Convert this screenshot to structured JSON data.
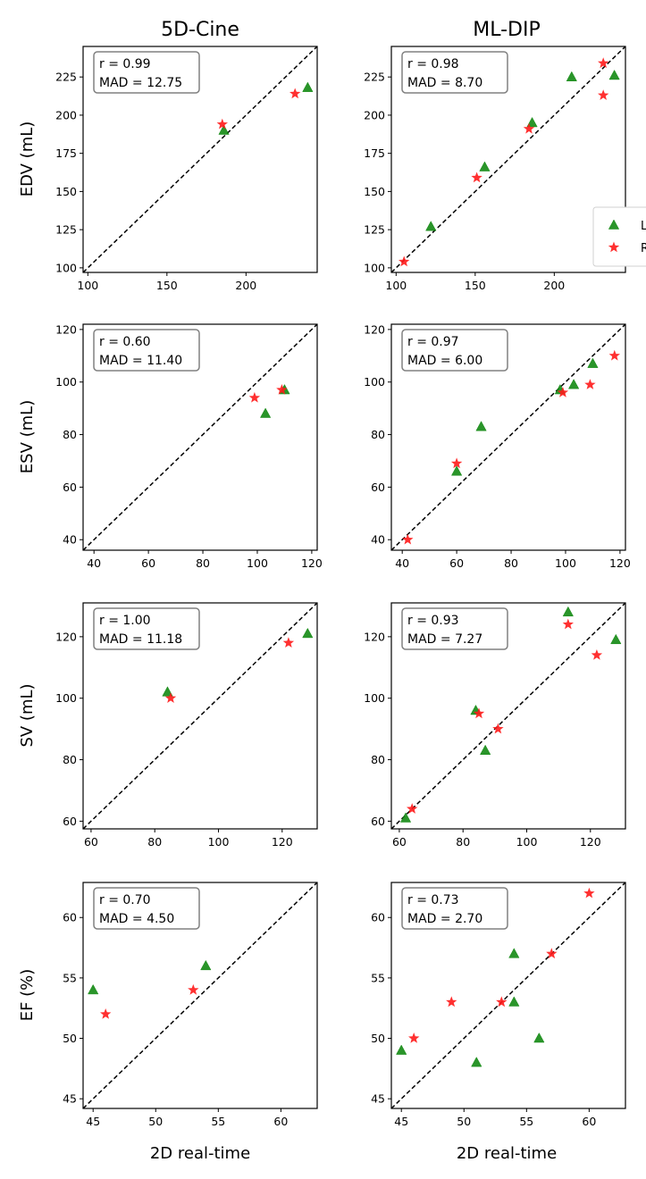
{
  "colors": {
    "LV": "#138a13",
    "RV": "#ff1a1a"
  },
  "column_titles": [
    "5D-Cine",
    "ML-DIP"
  ],
  "row_labels": [
    "EDV (mL)",
    "ESV (mL)",
    "SV (mL)",
    "EF (%)"
  ],
  "xlabel": "2D real-time",
  "legend": {
    "placement": "lower right",
    "entries": [
      {
        "name": "LV",
        "marker": "triangle"
      },
      {
        "name": "RV",
        "marker": "star"
      }
    ]
  },
  "chart_data": [
    {
      "type": "scatter",
      "row": 0,
      "col": 0,
      "xlim": [
        97,
        245
      ],
      "ylim": [
        97,
        245
      ],
      "xticks": [
        100,
        150,
        200
      ],
      "yticks": [
        100,
        125,
        150,
        175,
        200,
        225
      ],
      "identity_line": true,
      "grid": false,
      "annotation": {
        "r": "r = 0.99",
        "mad": "MAD = 12.75"
      },
      "series": [
        {
          "name": "LV",
          "points": [
            [
              186,
              190
            ],
            [
              239,
              218
            ]
          ]
        },
        {
          "name": "RV",
          "points": [
            [
              185,
              194
            ],
            [
              231,
              214
            ]
          ]
        }
      ]
    },
    {
      "type": "scatter",
      "row": 0,
      "col": 1,
      "xlim": [
        97,
        245
      ],
      "ylim": [
        97,
        245
      ],
      "xticks": [
        100,
        150,
        200
      ],
      "yticks": [
        100,
        125,
        150,
        175,
        200,
        225
      ],
      "identity_line": true,
      "grid": false,
      "legend": true,
      "annotation": {
        "r": "r = 0.98",
        "mad": "MAD = 8.70"
      },
      "series": [
        {
          "name": "LV",
          "points": [
            [
              211,
              225
            ],
            [
              238,
              226
            ],
            [
              186,
              195
            ],
            [
              156,
              166
            ],
            [
              122,
              127
            ]
          ]
        },
        {
          "name": "RV",
          "points": [
            [
              231,
              234
            ],
            [
              231,
              213
            ],
            [
              184,
              191
            ],
            [
              151,
              159
            ],
            [
              105,
              104
            ]
          ]
        }
      ]
    },
    {
      "type": "scatter",
      "row": 1,
      "col": 0,
      "xlim": [
        36,
        122
      ],
      "ylim": [
        36,
        122
      ],
      "xticks": [
        40,
        60,
        80,
        100,
        120
      ],
      "yticks": [
        40,
        60,
        80,
        100,
        120
      ],
      "identity_line": true,
      "grid": false,
      "annotation": {
        "r": "r = 0.60",
        "mad": "MAD = 11.40"
      },
      "series": [
        {
          "name": "LV",
          "points": [
            [
              103,
              88
            ],
            [
              110,
              97
            ]
          ]
        },
        {
          "name": "RV",
          "points": [
            [
              99,
              94
            ],
            [
              109,
              97
            ]
          ]
        }
      ]
    },
    {
      "type": "scatter",
      "row": 1,
      "col": 1,
      "xlim": [
        36,
        122
      ],
      "ylim": [
        36,
        122
      ],
      "xticks": [
        40,
        60,
        80,
        100,
        120
      ],
      "yticks": [
        40,
        60,
        80,
        100,
        120
      ],
      "identity_line": true,
      "grid": false,
      "annotation": {
        "r": "r = 0.97",
        "mad": "MAD = 6.00"
      },
      "series": [
        {
          "name": "LV",
          "points": [
            [
              60,
              66
            ],
            [
              69,
              83
            ],
            [
              98,
              97
            ],
            [
              103,
              99
            ],
            [
              110,
              107
            ]
          ]
        },
        {
          "name": "RV",
          "points": [
            [
              42,
              40
            ],
            [
              60,
              69
            ],
            [
              99,
              96
            ],
            [
              109,
              99
            ],
            [
              118,
              110
            ]
          ]
        }
      ]
    },
    {
      "type": "scatter",
      "row": 2,
      "col": 0,
      "xlim": [
        57.5,
        131
      ],
      "ylim": [
        57.5,
        131
      ],
      "xticks": [
        60,
        80,
        100,
        120
      ],
      "yticks": [
        60,
        80,
        100,
        120
      ],
      "identity_line": true,
      "grid": false,
      "annotation": {
        "r": "r = 1.00",
        "mad": "MAD = 11.18"
      },
      "series": [
        {
          "name": "LV",
          "points": [
            [
              84,
              102
            ],
            [
              128,
              121
            ]
          ]
        },
        {
          "name": "RV",
          "points": [
            [
              85,
              100
            ],
            [
              122,
              118
            ]
          ]
        }
      ]
    },
    {
      "type": "scatter",
      "row": 2,
      "col": 1,
      "xlim": [
        57.5,
        131
      ],
      "ylim": [
        57.5,
        131
      ],
      "xticks": [
        60,
        80,
        100,
        120
      ],
      "yticks": [
        60,
        80,
        100,
        120
      ],
      "identity_line": true,
      "grid": false,
      "annotation": {
        "r": "r = 0.93",
        "mad": "MAD = 7.27"
      },
      "series": [
        {
          "name": "LV",
          "points": [
            [
              113,
              128
            ],
            [
              128,
              119
            ],
            [
              84,
              96
            ],
            [
              87,
              83
            ],
            [
              62,
              61
            ]
          ]
        },
        {
          "name": "RV",
          "points": [
            [
              113,
              124
            ],
            [
              122,
              114
            ],
            [
              85,
              95
            ],
            [
              91,
              90
            ],
            [
              64,
              64
            ]
          ]
        }
      ]
    },
    {
      "type": "scatter",
      "row": 3,
      "col": 0,
      "xlim": [
        44.2,
        62.9
      ],
      "ylim": [
        44.2,
        62.9
      ],
      "xticks": [
        45,
        50,
        55,
        60
      ],
      "yticks": [
        45,
        50,
        55,
        60
      ],
      "identity_line": true,
      "grid": false,
      "annotation": {
        "r": "r = 0.70",
        "mad": "MAD = 4.50"
      },
      "series": [
        {
          "name": "LV",
          "points": [
            [
              45,
              54
            ],
            [
              54,
              56
            ]
          ]
        },
        {
          "name": "RV",
          "points": [
            [
              46,
              52
            ],
            [
              53,
              54
            ]
          ]
        }
      ]
    },
    {
      "type": "scatter",
      "row": 3,
      "col": 1,
      "xlim": [
        44.2,
        62.9
      ],
      "ylim": [
        44.2,
        62.9
      ],
      "xticks": [
        45,
        50,
        55,
        60
      ],
      "yticks": [
        45,
        50,
        55,
        60
      ],
      "identity_line": true,
      "grid": false,
      "annotation": {
        "r": "r = 0.73",
        "mad": "MAD = 2.70"
      },
      "series": [
        {
          "name": "LV",
          "points": [
            [
              45,
              49
            ],
            [
              51,
              48
            ],
            [
              54,
              53
            ],
            [
              54,
              57
            ],
            [
              56,
              50
            ]
          ]
        },
        {
          "name": "RV",
          "points": [
            [
              46,
              50
            ],
            [
              49,
              53
            ],
            [
              53,
              53
            ],
            [
              57,
              57
            ],
            [
              60,
              62
            ]
          ]
        }
      ]
    }
  ]
}
